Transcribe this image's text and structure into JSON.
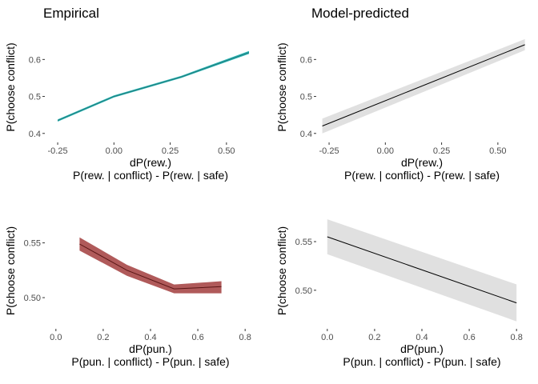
{
  "titles": {
    "left": "Empirical",
    "right": "Model-predicted"
  },
  "chart_data": [
    {
      "id": "empirical-rew",
      "type": "line",
      "title": "Empirical",
      "xlabel": "dP(rew.)",
      "xlabel2": "P(rew. | conflict) - P(rew. | safe)",
      "ylabel": "P(choose conflict)",
      "xlim": [
        -0.3,
        0.625
      ],
      "ylim": [
        0.38,
        0.67
      ],
      "xticks": [
        -0.25,
        0.0,
        0.25,
        0.5
      ],
      "xticklabels": [
        "-0.25",
        "0.00",
        "0.25",
        "0.50"
      ],
      "yticks": [
        0.4,
        0.5,
        0.6
      ],
      "yticklabels": [
        "0.4",
        "0.5",
        "0.6"
      ],
      "line_color": "#1f7a7a",
      "band_color": "#2bb5b5",
      "series": [
        {
          "x": [
            -0.25,
            0.0,
            0.3,
            0.6
          ],
          "y": [
            0.435,
            0.5,
            0.553,
            0.619
          ],
          "lower": [
            0.432,
            0.497,
            0.55,
            0.615
          ],
          "upper": [
            0.438,
            0.503,
            0.556,
            0.623
          ]
        }
      ]
    },
    {
      "id": "model-rew",
      "type": "line",
      "title": "Model-predicted",
      "xlabel": "dP(rew.)",
      "xlabel2": "P(rew. | conflict) - P(rew. | safe)",
      "ylabel": "P(choose conflict)",
      "xlim": [
        -0.3,
        0.625
      ],
      "ylim": [
        0.38,
        0.67
      ],
      "xticks": [
        -0.25,
        0.0,
        0.25,
        0.5
      ],
      "xticklabels": [
        "-0.25",
        "0.00",
        "0.25",
        "0.50"
      ],
      "yticks": [
        0.4,
        0.5,
        0.6
      ],
      "yticklabels": [
        "0.4",
        "0.5",
        "0.6"
      ],
      "line_color": "#000000",
      "band_color": "#e0e0e0",
      "series": [
        {
          "x": [
            -0.28,
            0.62
          ],
          "y": [
            0.42,
            0.64
          ],
          "lower": [
            0.4,
            0.625
          ],
          "upper": [
            0.44,
            0.655
          ]
        }
      ]
    },
    {
      "id": "empirical-pun",
      "type": "line",
      "xlabel": "dP(pun.)",
      "xlabel2": "P(pun. | conflict) - P(pun. | safe)",
      "ylabel": "P(choose conflict)",
      "xlim": [
        -0.04,
        0.84
      ],
      "ylim": [
        0.473,
        0.576
      ],
      "xticks": [
        0.0,
        0.2,
        0.4,
        0.6,
        0.8
      ],
      "xticklabels": [
        "0.0",
        "0.2",
        "0.4",
        "0.6",
        "0.8"
      ],
      "yticks": [
        0.5,
        0.55
      ],
      "yticklabels": [
        "0.50",
        "0.55"
      ],
      "line_color": "#5a1515",
      "band_color": "#b05a5a",
      "series": [
        {
          "x": [
            0.1,
            0.3,
            0.5,
            0.7
          ],
          "y": [
            0.549,
            0.525,
            0.508,
            0.51
          ],
          "lower": [
            0.543,
            0.52,
            0.504,
            0.504
          ],
          "upper": [
            0.555,
            0.53,
            0.512,
            0.515
          ]
        }
      ]
    },
    {
      "id": "model-pun",
      "type": "line",
      "xlabel": "dP(pun.)",
      "xlabel2": "P(pun. | conflict) - P(pun. | safe)",
      "ylabel": "P(choose conflict)",
      "xlim": [
        -0.04,
        0.84
      ],
      "ylim": [
        0.462,
        0.578
      ],
      "xticks": [
        0.0,
        0.2,
        0.4,
        0.6,
        0.8
      ],
      "xticklabels": [
        "0.0",
        "0.2",
        "0.4",
        "0.6",
        "0.8"
      ],
      "yticks": [
        0.5,
        0.55
      ],
      "yticklabels": [
        "0.50",
        "0.55"
      ],
      "line_color": "#000000",
      "band_color": "#e0e0e0",
      "series": [
        {
          "x": [
            0.0,
            0.8
          ],
          "y": [
            0.555,
            0.487
          ],
          "lower": [
            0.537,
            0.468
          ],
          "upper": [
            0.573,
            0.506
          ]
        }
      ]
    }
  ]
}
